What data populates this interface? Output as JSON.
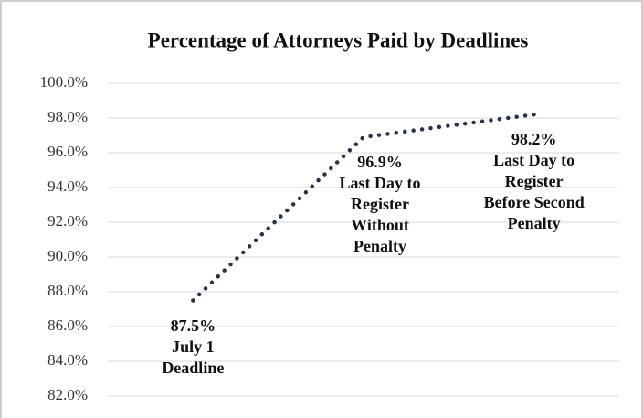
{
  "chart_data": {
    "type": "line",
    "title": "Percentage of Attorneys Paid by Deadlines",
    "categories": [
      "July 1 Deadline",
      "Last Day to Register Without Penalty",
      "Last Day to Register Before Second Penalty"
    ],
    "values": [
      87.5,
      96.9,
      98.2
    ],
    "value_labels": [
      "87.5%",
      "96.9%",
      "98.2%"
    ],
    "color": "#253448",
    "ylim": [
      82,
      100
    ],
    "yticks": [
      {
        "value": 82,
        "label": "82.0%"
      },
      {
        "value": 84,
        "label": "84.0%"
      },
      {
        "value": 86,
        "label": "86.0%"
      },
      {
        "value": 88,
        "label": "88.0%"
      },
      {
        "value": 90,
        "label": "90.0%"
      },
      {
        "value": 92,
        "label": "92.0%"
      },
      {
        "value": 94,
        "label": "94.0%"
      },
      {
        "value": 96,
        "label": "96.0%"
      },
      {
        "value": 98,
        "label": "98.0%"
      },
      {
        "value": 100,
        "label": "100.0%"
      }
    ],
    "grid": true
  }
}
